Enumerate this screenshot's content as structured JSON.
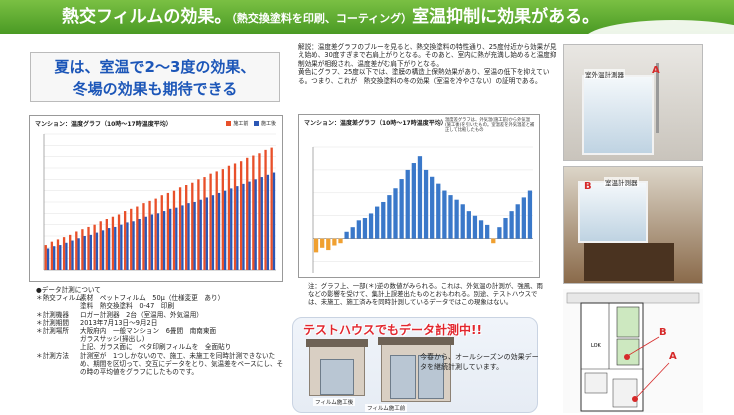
{
  "banner": {
    "title_main": "熱交フィルムの効果。",
    "title_sub": "（熱交換塗料を印刷、コーティング）",
    "title_end": "室温抑制に効果がある。"
  },
  "left": {
    "heading_line1": "夏は、室温で2～3度の効果、",
    "heading_line2": "冬場の効果も期待できる",
    "info": [
      {
        "k": "●データ計測について",
        "v": ""
      },
      {
        "k": "＊熱交フィルム",
        "v": "素材　ペットフィルム　50μ（仕様変更　あり）"
      },
      {
        "k": "",
        "v": "塗料　熱交換塗料　0-47　印刷"
      },
      {
        "k": "＊計測機器",
        "v": "ロガー計測器　2台（室温用、外気温用）"
      },
      {
        "k": "＊計測期間",
        "v": "2013年7月13日～9月2日"
      },
      {
        "k": "＊計測場所",
        "v": "大阪府内　一般マンション　6畳間　南南東面"
      },
      {
        "k": "",
        "v": "ガラスサッシ(掃出し)"
      },
      {
        "k": "",
        "v": "上記、ガラス面に　ペタ印刷フィルムを　全面貼り"
      },
      {
        "k": "＊計測方法",
        "v": "計測室が　1つしかないので、施工、未施工を同時計測できないため、期間を区切って、交互にデータをとり、気温差をベースにし、その時の平均値をグラフにしたものです。"
      }
    ]
  },
  "middle": {
    "desc": [
      "解説：温度差グラフのブルーを見ると、熱交換塗料の特性通り、25度付近から効果が見え始め、30度すぎまで右肩上がりとなる。そのあと、室内に熱が充満し始めると温度抑制効果が相殺され、温度差がむ肩下がりとなる。",
      "黄色にグラフ、25度以下では、塗膜の構造上保熱効果があり、室温の低下を抑えている。つまり、これが　熱交換塗料の冬の効果（室温を冷やさない）の証明である。"
    ],
    "note": "注：グラフ上、一部(＊)逆の数値がみられる。これは、外気温の計測が、強風、雨などの影響を受けて、集計上誤差出たものとおもわれる。別途、テストハウスでは、未施工、施工済みを同時計測しているデータではこの現象はない。",
    "test_title": "テストハウスでもデータ計測中!!",
    "house_left_label": "フィルム施工後",
    "house_right_label": "フィルム施工前",
    "test_text": "今春から、オールシーズンの効果データを継続計測しています。"
  },
  "right": {
    "photo1_tag": "室外温計測器",
    "photo1_letter": "A",
    "photo2_tag": "室温計測器",
    "photo2_letter": "B",
    "plan_label_lok": "LOK",
    "plan_label_b": "B",
    "plan_label_a": "A"
  },
  "chart_data": [
    {
      "type": "bar",
      "title": "マンション：温度グラフ（10時～17時温度平均）",
      "legend_position": "top-right",
      "series": [
        {
          "name": "施工前",
          "color": "#e8502a",
          "values": [
            28.2,
            28.5,
            28.7,
            28.9,
            29.1,
            29.4,
            29.6,
            29.8,
            30.0,
            30.3,
            30.5,
            30.7,
            30.9,
            31.2,
            31.4,
            31.6,
            31.9,
            32.1,
            32.3,
            32.6,
            32.8,
            33.0,
            33.3,
            33.5,
            33.7,
            34.0,
            34.2,
            34.5,
            34.7,
            34.9,
            35.2,
            35.4,
            35.6,
            35.9,
            36.1,
            36.3,
            36.6,
            36.8
          ]
        },
        {
          "name": "施工後",
          "color": "#2b57b5",
          "values": [
            27.9,
            28.1,
            28.2,
            28.4,
            28.6,
            28.8,
            29.0,
            29.1,
            29.3,
            29.5,
            29.7,
            29.8,
            30.0,
            30.2,
            30.3,
            30.5,
            30.7,
            30.9,
            31.0,
            31.2,
            31.4,
            31.5,
            31.7,
            31.9,
            32.0,
            32.2,
            32.4,
            32.6,
            32.8,
            33.0,
            33.2,
            33.4,
            33.6,
            33.8,
            34.0,
            34.2,
            34.4,
            34.6
          ]
        }
      ],
      "ylim": [
        26,
        38
      ],
      "grid": true
    },
    {
      "type": "bar",
      "title": "マンション：温度差グラフ（10時～17時温度平均）",
      "note": "温度差グラフは、外気温(施工前)から外気温(施工後)を引いたもの。室温差を外気温差と補正して比較したもの",
      "values": [
        -0.6,
        -0.4,
        -0.5,
        -0.3,
        -0.2,
        0.3,
        0.5,
        0.8,
        0.9,
        1.1,
        1.4,
        1.6,
        1.9,
        2.2,
        2.6,
        3.0,
        3.3,
        3.6,
        3.0,
        2.7,
        2.4,
        2.1,
        1.9,
        1.7,
        1.5,
        1.2,
        1.0,
        0.8,
        0.6,
        -0.2,
        0.5,
        0.9,
        1.2,
        1.5,
        1.8,
        2.1
      ],
      "ylim": [
        -1.5,
        4
      ],
      "grid": true
    }
  ]
}
